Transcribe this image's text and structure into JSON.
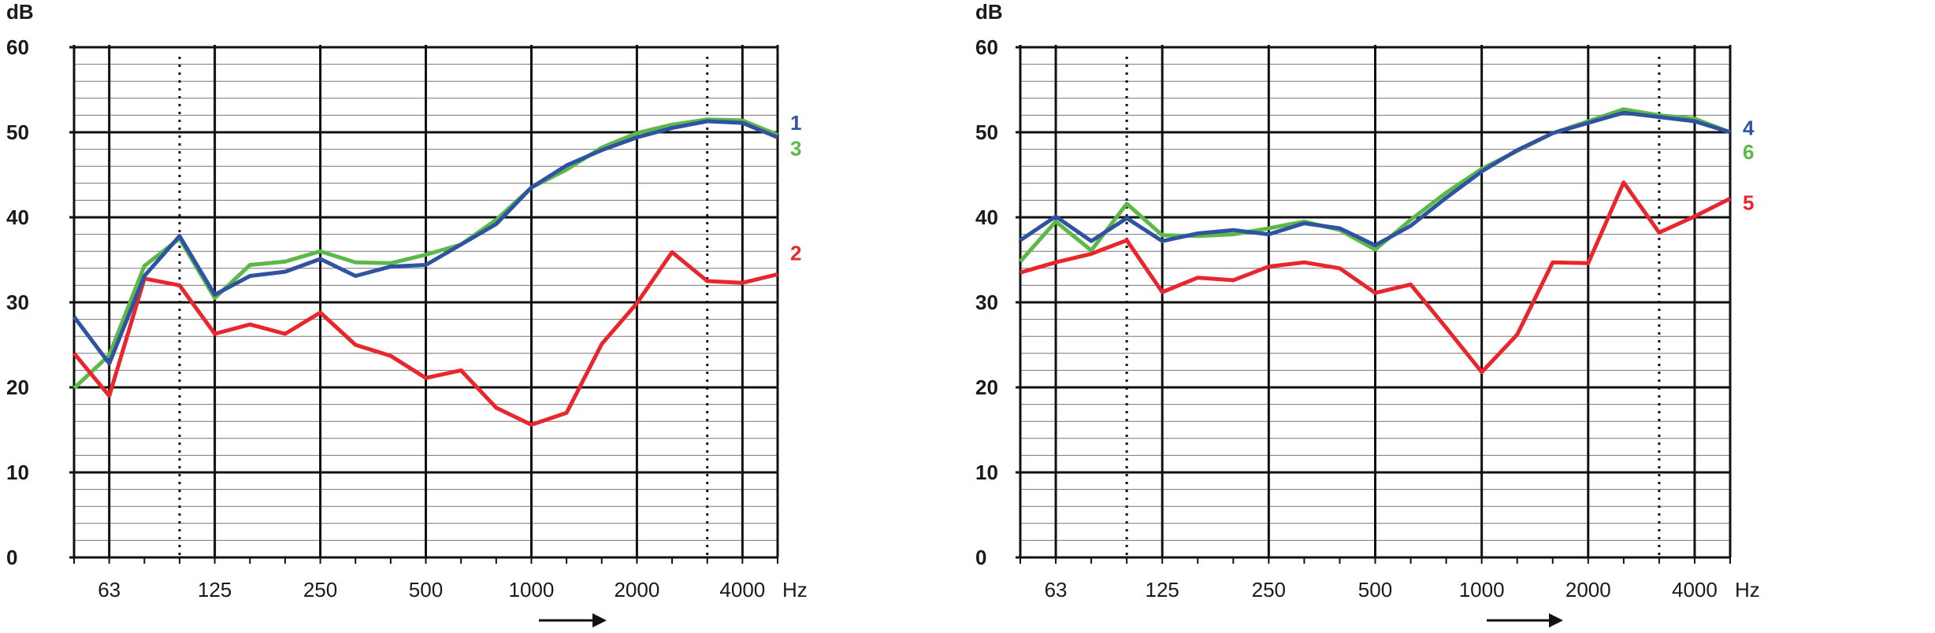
{
  "chart_data": [
    {
      "type": "line",
      "ylabel": "dB",
      "xunit": "Hz",
      "ylim": [
        0,
        60
      ],
      "yticks": [
        "0",
        "10",
        "20",
        "30",
        "40",
        "50",
        "60"
      ],
      "grid": true,
      "x": [
        50,
        63,
        80,
        100,
        125,
        160,
        200,
        250,
        315,
        400,
        500,
        630,
        800,
        1000,
        1250,
        1600,
        2000,
        2500,
        3150,
        4000,
        5000
      ],
      "xtick_labels": [
        "63",
        "125",
        "250",
        "500",
        "1000",
        "2000",
        "4000"
      ],
      "series": [
        {
          "name": "1",
          "color": "#2f52a3",
          "values": [
            28.3,
            22.8,
            33.1,
            37.8,
            30.9,
            33.1,
            33.6,
            35.1,
            33.1,
            34.2,
            34.4,
            36.8,
            39.2,
            43.5,
            46.1,
            47.9,
            49.4,
            50.5,
            51.3,
            51.1,
            49.4
          ]
        },
        {
          "name": "2",
          "color": "#e8262b",
          "values": [
            24.0,
            19.0,
            32.8,
            32.0,
            26.3,
            27.4,
            26.3,
            28.8,
            25.0,
            23.7,
            21.1,
            22.0,
            17.6,
            15.6,
            17.0,
            25.1,
            29.9,
            35.9,
            32.5,
            32.3,
            33.3
          ]
        },
        {
          "name": "3",
          "color": "#5cb848",
          "values": [
            19.9,
            23.8,
            34.3,
            37.5,
            30.5,
            34.4,
            34.8,
            36.0,
            34.7,
            34.6,
            35.6,
            36.8,
            39.7,
            43.5,
            45.6,
            48.2,
            49.9,
            50.9,
            51.5,
            51.4,
            49.7
          ]
        }
      ]
    },
    {
      "type": "line",
      "ylabel": "dB",
      "xunit": "Hz",
      "ylim": [
        0,
        60
      ],
      "yticks": [
        "0",
        "10",
        "20",
        "30",
        "40",
        "50",
        "60"
      ],
      "grid": true,
      "x": [
        50,
        63,
        80,
        100,
        125,
        160,
        200,
        250,
        315,
        400,
        500,
        630,
        800,
        1000,
        1250,
        1600,
        2000,
        2500,
        3150,
        4000,
        5000
      ],
      "xtick_labels": [
        "63",
        "125",
        "250",
        "500",
        "1000",
        "2000",
        "4000"
      ],
      "series": [
        {
          "name": "4",
          "color": "#2f52a3",
          "values": [
            37.3,
            40.1,
            37.2,
            39.9,
            37.2,
            38.1,
            38.5,
            38.0,
            39.3,
            38.7,
            36.7,
            39.0,
            42.3,
            45.4,
            47.9,
            49.9,
            51.1,
            52.3,
            51.8,
            51.3,
            50.0
          ]
        },
        {
          "name": "5",
          "color": "#e8262b",
          "values": [
            33.5,
            34.7,
            35.7,
            37.3,
            31.2,
            32.9,
            32.6,
            34.2,
            34.7,
            34.0,
            31.1,
            32.1,
            27.0,
            21.8,
            26.2,
            34.7,
            34.6,
            44.1,
            38.2,
            40.1,
            42.2
          ]
        },
        {
          "name": "6",
          "color": "#5cb848",
          "values": [
            34.8,
            39.5,
            36.1,
            41.6,
            37.9,
            37.8,
            38.0,
            38.7,
            39.5,
            38.5,
            36.2,
            39.7,
            42.9,
            45.7,
            47.8,
            49.9,
            51.3,
            52.7,
            52.0,
            51.6,
            50.0
          ]
        }
      ]
    }
  ]
}
